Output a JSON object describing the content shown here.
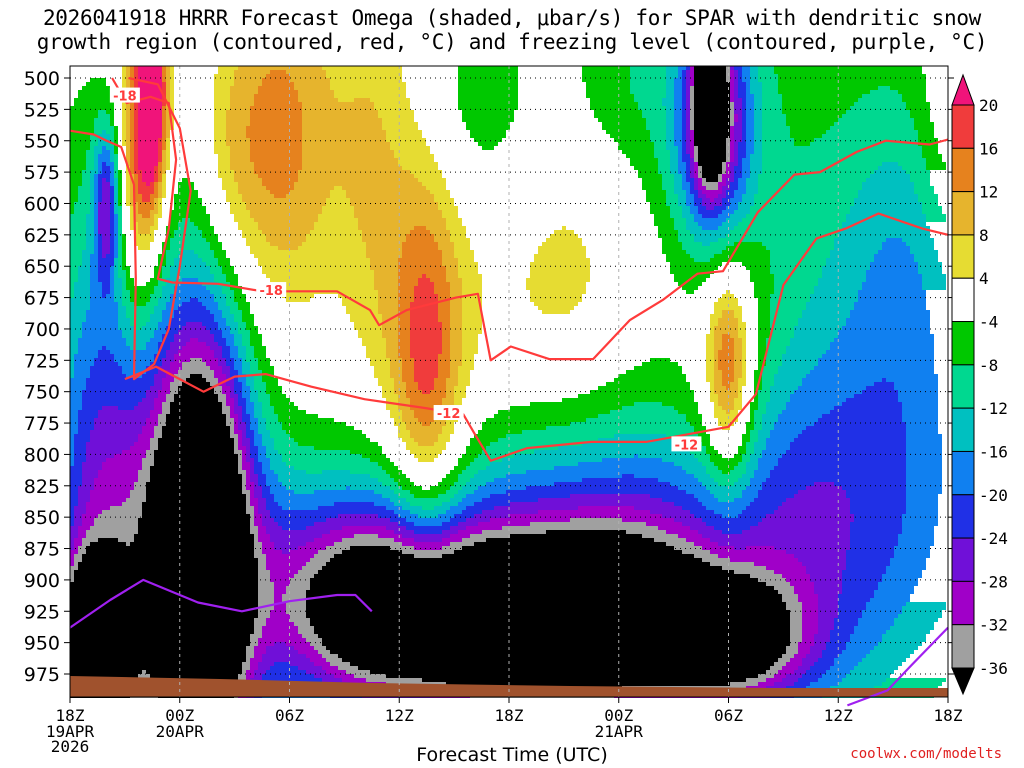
{
  "title": {
    "line1": "2026041918 HRRR Forecast Omega (shaded, μbar/s) for SPAR with dendritic snow",
    "line2": "growth region (contoured, red, °C) and freezing level (contoured, purple, °C)"
  },
  "credit": "coolwx.com/modelts",
  "chart_data": {
    "type": "heatmap",
    "xlabel": "Forecast Time (UTC)",
    "x_ticks": [
      {
        "hour": 0,
        "label": "18Z",
        "sub": [
          "19APR",
          "2026"
        ]
      },
      {
        "hour": 6,
        "label": "00Z",
        "sub": [
          "20APR"
        ]
      },
      {
        "hour": 12,
        "label": "06Z",
        "sub": []
      },
      {
        "hour": 18,
        "label": "12Z",
        "sub": []
      },
      {
        "hour": 24,
        "label": "18Z",
        "sub": []
      },
      {
        "hour": 30,
        "label": "00Z",
        "sub": [
          "21APR"
        ]
      },
      {
        "hour": 36,
        "label": "06Z",
        "sub": []
      },
      {
        "hour": 42,
        "label": "12Z",
        "sub": []
      },
      {
        "hour": 48,
        "label": "18Z",
        "sub": []
      }
    ],
    "y_ticks": [
      500,
      525,
      550,
      575,
      600,
      625,
      650,
      675,
      700,
      725,
      750,
      775,
      800,
      825,
      850,
      875,
      900,
      925,
      950,
      975
    ],
    "xlim": [
      0,
      48
    ],
    "ylim_hpa": [
      1000,
      500
    ],
    "grid": true,
    "colorbar": {
      "labels": [
        "20",
        "16",
        "12",
        "8",
        "4",
        "-4",
        "-8",
        "-12",
        "-16",
        "-20",
        "-24",
        "-28",
        "-32",
        "-36"
      ],
      "bands": [
        {
          "from": -40,
          "to": -36,
          "color": "#000000"
        },
        {
          "from": -36,
          "to": -32,
          "color": "#a0a0a0"
        },
        {
          "from": -32,
          "to": -28,
          "color": "#a000c8"
        },
        {
          "from": -28,
          "to": -24,
          "color": "#7010d8"
        },
        {
          "from": -24,
          "to": -20,
          "color": "#2030e6"
        },
        {
          "from": -20,
          "to": -16,
          "color": "#1080f0"
        },
        {
          "from": -16,
          "to": -12,
          "color": "#00c0c0"
        },
        {
          "from": -12,
          "to": -8,
          "color": "#00d890"
        },
        {
          "from": -8,
          "to": -4,
          "color": "#00c800"
        },
        {
          "from": -4,
          "to": 4,
          "color": "#ffffff"
        },
        {
          "from": 4,
          "to": 8,
          "color": "#e6dc32"
        },
        {
          "from": 8,
          "to": 12,
          "color": "#e6b42d"
        },
        {
          "from": 12,
          "to": 16,
          "color": "#e6821e"
        },
        {
          "from": 16,
          "to": 20,
          "color": "#f03c3c"
        },
        {
          "from": 20,
          "to": 24,
          "color": "#f0147a"
        }
      ]
    },
    "omega_features": [
      {
        "hour": 2.0,
        "p": 600,
        "sx": 0.5,
        "sy": 45,
        "v": -20
      },
      {
        "hour": 1.3,
        "p": 870,
        "sx": 1.9,
        "sy": 190,
        "v": -16
      },
      {
        "hour": 1.2,
        "p": 955,
        "sx": 1.3,
        "sy": 45,
        "v": -44
      },
      {
        "hour": 7.2,
        "p": 885,
        "sx": 1.8,
        "sy": 120,
        "v": -44
      },
      {
        "hour": 5.5,
        "p": 880,
        "sx": 3.5,
        "sy": 230,
        "v": -22
      },
      {
        "hour": 16.5,
        "p": 925,
        "sx": 4.0,
        "sy": 55,
        "v": -32
      },
      {
        "hour": 24.0,
        "p": 945,
        "sx": 5.0,
        "sy": 45,
        "v": -32
      },
      {
        "hour": 29.5,
        "p": 930,
        "sx": 5.5,
        "sy": 55,
        "v": -30
      },
      {
        "hour": 36.0,
        "p": 950,
        "sx": 3.0,
        "sy": 35,
        "v": -28
      },
      {
        "hour": 19.0,
        "p": 880,
        "sx": 9.0,
        "sy": 70,
        "v": -14
      },
      {
        "hour": 32.5,
        "p": 850,
        "sx": 7.5,
        "sy": 80,
        "v": -12
      },
      {
        "hour": 35.0,
        "p": 510,
        "sx": 0.5,
        "sy": 40,
        "v": -44
      },
      {
        "hour": 35.2,
        "p": 535,
        "sx": 1.3,
        "sy": 65,
        "v": -26
      },
      {
        "hour": 35.0,
        "p": 550,
        "sx": 2.5,
        "sy": 100,
        "v": -12
      },
      {
        "hour": 42.5,
        "p": 740,
        "sx": 5.5,
        "sy": 230,
        "v": -10
      },
      {
        "hour": 43.0,
        "p": 860,
        "sx": 7.0,
        "sy": 110,
        "v": -9
      },
      {
        "hour": 46.0,
        "p": 650,
        "sx": 2.5,
        "sy": 100,
        "v": -8
      },
      {
        "hour": 22.0,
        "p": 520,
        "sx": 2.5,
        "sy": 70,
        "v": -8
      },
      {
        "hour": 30.0,
        "p": 500,
        "sx": 2.0,
        "sy": 50,
        "v": -6
      },
      {
        "hour": 4.5,
        "p": 515,
        "sx": 0.6,
        "sy": 60,
        "v": 23
      },
      {
        "hour": 3.8,
        "p": 575,
        "sx": 0.8,
        "sy": 80,
        "v": 15
      },
      {
        "hour": 4.2,
        "p": 560,
        "sx": 1.7,
        "sy": 140,
        "v": 8
      },
      {
        "hour": 11.5,
        "p": 540,
        "sx": 2.5,
        "sy": 90,
        "v": 10
      },
      {
        "hour": 11.0,
        "p": 590,
        "sx": 2.0,
        "sy": 120,
        "v": 6
      },
      {
        "hour": 8.5,
        "p": 570,
        "sx": 1.3,
        "sy": 70,
        "v": 6
      },
      {
        "hour": 19.5,
        "p": 745,
        "sx": 1.3,
        "sy": 110,
        "v": 13
      },
      {
        "hour": 19.5,
        "p": 720,
        "sx": 2.3,
        "sy": 180,
        "v": 7
      },
      {
        "hour": 16.5,
        "p": 560,
        "sx": 1.5,
        "sy": 110,
        "v": 6
      },
      {
        "hour": 27.0,
        "p": 670,
        "sx": 3.0,
        "sy": 80,
        "v": 6
      },
      {
        "hour": 36.0,
        "p": 735,
        "sx": 0.9,
        "sy": 60,
        "v": 19
      },
      {
        "hour": 35.5,
        "p": 725,
        "sx": 2.3,
        "sy": 140,
        "v": 9
      },
      {
        "hour": 48.0,
        "p": 540,
        "sx": 1.2,
        "sy": 70,
        "v": 6
      }
    ],
    "contours": [
      {
        "label": "-18",
        "color": "#ff3b3b",
        "label_positions": [
          [
            3.0,
            514
          ],
          [
            11.0,
            669
          ]
        ],
        "points": [
          [
            2.3,
            500
          ],
          [
            3.1,
            520
          ],
          [
            4.4,
            515
          ],
          [
            5.4,
            520
          ],
          [
            5.8,
            565
          ],
          [
            5.4,
            620
          ],
          [
            4.8,
            660
          ],
          [
            5.6,
            663
          ],
          [
            8.1,
            664
          ],
          [
            10.5,
            670
          ],
          [
            14.6,
            670
          ],
          [
            16.4,
            685
          ],
          [
            16.9,
            697
          ],
          [
            18.4,
            685
          ],
          [
            21.1,
            675
          ],
          [
            22.3,
            672
          ],
          [
            23.0,
            725
          ],
          [
            24.1,
            714
          ],
          [
            26.2,
            724
          ],
          [
            28.6,
            724
          ],
          [
            30.6,
            693
          ],
          [
            32.4,
            677
          ],
          [
            34.3,
            656
          ],
          [
            35.7,
            654
          ],
          [
            37.6,
            607
          ],
          [
            39.6,
            577
          ],
          [
            41.0,
            575
          ],
          [
            43.0,
            559
          ],
          [
            44.6,
            550
          ],
          [
            47.0,
            553
          ],
          [
            48.0,
            549
          ]
        ]
      },
      {
        "label": "-18",
        "color": "#ff3b3b",
        "points": [
          [
            3.2,
            500
          ],
          [
            4.8,
            505
          ],
          [
            6.0,
            540
          ],
          [
            6.6,
            590
          ],
          [
            6.0,
            650
          ],
          [
            5.4,
            700
          ],
          [
            4.6,
            728
          ],
          [
            3.5,
            740
          ],
          [
            3.6,
            660
          ],
          [
            3.5,
            585
          ],
          [
            2.8,
            555
          ],
          [
            2.0,
            550
          ],
          [
            1.3,
            545
          ],
          [
            0.0,
            542
          ]
        ]
      },
      {
        "label": "-12",
        "color": "#ff3b3b",
        "label_positions": [
          [
            20.7,
            767
          ],
          [
            33.7,
            792
          ]
        ],
        "points": [
          [
            3.0,
            740
          ],
          [
            4.7,
            730
          ],
          [
            7.3,
            750
          ],
          [
            9.0,
            738
          ],
          [
            10.7,
            736
          ],
          [
            13.2,
            746
          ],
          [
            16.1,
            756
          ],
          [
            19.4,
            763
          ],
          [
            21.5,
            768
          ],
          [
            22.1,
            783
          ],
          [
            23.0,
            805
          ],
          [
            25.0,
            795
          ],
          [
            28.5,
            790
          ],
          [
            31.5,
            790
          ],
          [
            36.0,
            778
          ],
          [
            37.5,
            752
          ],
          [
            39.0,
            665
          ],
          [
            40.8,
            628
          ],
          [
            42.4,
            620
          ],
          [
            44.2,
            608
          ],
          [
            46.6,
            620
          ],
          [
            48.0,
            625
          ]
        ]
      },
      {
        "label": "",
        "color": "#a020f0",
        "points": [
          [
            0.0,
            938
          ],
          [
            2.2,
            916
          ],
          [
            4.0,
            900
          ],
          [
            7.0,
            918
          ],
          [
            9.4,
            925
          ],
          [
            12.0,
            917
          ],
          [
            14.6,
            912
          ],
          [
            15.6,
            912
          ],
          [
            16.5,
            925
          ]
        ]
      },
      {
        "label": "",
        "color": "#a020f0",
        "points": [
          [
            42.5,
            1000
          ],
          [
            44.7,
            988
          ],
          [
            46.0,
            968
          ],
          [
            47.2,
            950
          ],
          [
            48.0,
            938
          ]
        ]
      }
    ]
  }
}
